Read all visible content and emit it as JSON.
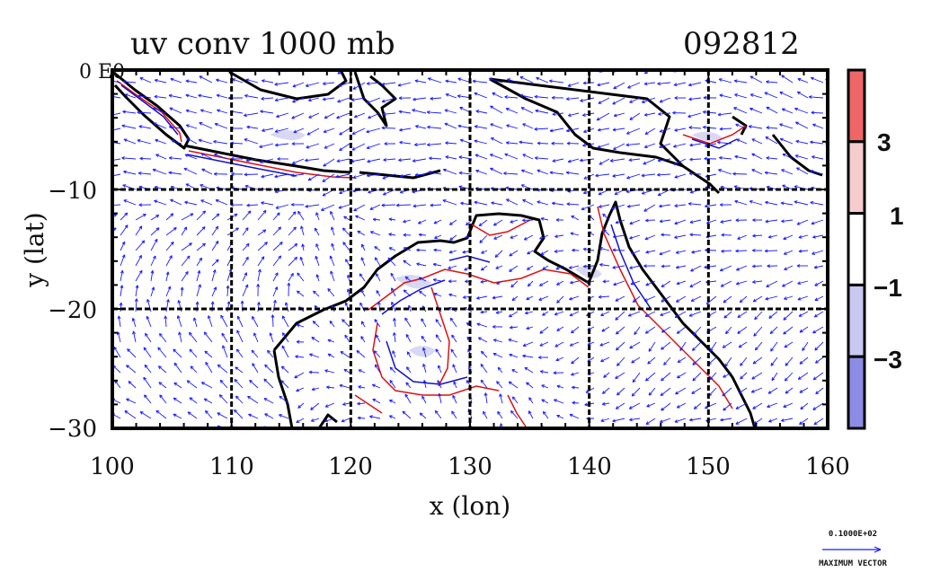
{
  "title": "uv conv 1000 mb",
  "date_label": "092812",
  "corner_label": "0 E0",
  "xlabel": "x (lon)",
  "ylabel": "y (lat)",
  "x_ticks": [
    "100",
    "110",
    "120",
    "130",
    "140",
    "150",
    "160"
  ],
  "y_ticks": [
    "0",
    "−10",
    "−20",
    "−30"
  ],
  "colorbar": {
    "labels": [
      "3",
      "1",
      "−1",
      "−3"
    ],
    "colors": [
      "#ee6666",
      "#f6cccc",
      "#ffffff",
      "#c8c8f0",
      "#8c8ce6"
    ]
  },
  "reference_vector": {
    "value": "0.1000E+02",
    "caption": "MAXIMUM VECTOR"
  },
  "colors": {
    "vectors": "#1a1aff",
    "positive_contour": "#dd1111",
    "negative_contour": "#1111cc",
    "coastline": "#000000"
  },
  "chart_data": {
    "type": "vector-field map",
    "xlim": [
      100,
      160
    ],
    "ylim": [
      -30,
      0
    ],
    "grid": true,
    "gridlines_lon": [
      110,
      120,
      130,
      140,
      150
    ],
    "gridlines_lat": [
      -10,
      -20
    ]
  }
}
